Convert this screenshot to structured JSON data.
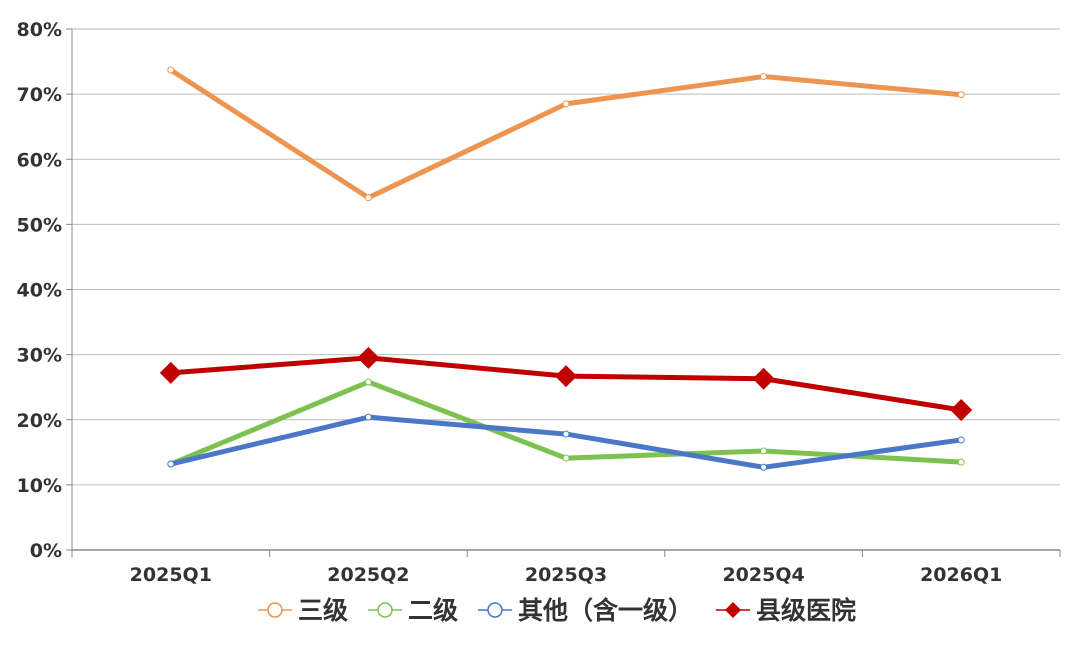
{
  "chart_data": {
    "type": "line",
    "title": "",
    "xlabel": "",
    "ylabel": "",
    "categories": [
      "2025Q1",
      "2025Q2",
      "2025Q3",
      "2025Q4",
      "2026Q1"
    ],
    "ylim": [
      0,
      80
    ],
    "yticks": [
      "0%",
      "10%",
      "20%",
      "30%",
      "40%",
      "50%",
      "60%",
      "70%",
      "80%"
    ],
    "grid": true,
    "legend_position": "bottom",
    "series": [
      {
        "name": "三级",
        "color": "#ED9550",
        "marker": "circle",
        "values": [
          73.7,
          54.1,
          68.5,
          72.7,
          69.9
        ]
      },
      {
        "name": "二级",
        "color": "#7DC250",
        "marker": "circle",
        "values": [
          13.2,
          25.8,
          14.1,
          15.2,
          13.5
        ]
      },
      {
        "name": "其他（含一级）",
        "color": "#4A77C8",
        "marker": "circle",
        "values": [
          13.2,
          20.4,
          17.8,
          12.7,
          16.9
        ]
      },
      {
        "name": "县级医院",
        "color": "#C00000",
        "marker": "diamond",
        "values": [
          27.2,
          29.5,
          26.7,
          26.3,
          21.5
        ]
      }
    ]
  }
}
